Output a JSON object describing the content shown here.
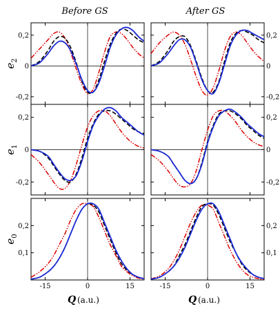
{
  "column_titles": [
    "Before GS",
    "After GS"
  ],
  "x_axis": {
    "symbol": "Q",
    "unit": "(a.u.)"
  },
  "chart_data": {
    "type": "line",
    "xlim": [
      -20,
      20
    ],
    "x_ticks": [
      -15,
      0,
      15
    ],
    "x_tick_labels": [
      "-15",
      "0",
      "15"
    ],
    "rows": [
      {
        "ylabel": "e",
        "ylabel_sub": "2",
        "ylim": [
          -0.25,
          0.28
        ],
        "y_ticks": [
          -0.2,
          0,
          0.2
        ],
        "y_tick_labels": [
          "-0,2",
          "0",
          "0,2"
        ]
      },
      {
        "ylabel": "e",
        "ylabel_sub": "1",
        "ylim": [
          -0.28,
          0.28
        ],
        "y_ticks": [
          -0.2,
          0,
          0.2
        ],
        "y_tick_labels": [
          "-0,2",
          "0",
          "0,2"
        ]
      },
      {
        "ylabel": "e",
        "ylabel_sub": "0",
        "ylim": [
          0,
          0.3
        ],
        "y_ticks": [
          0.1,
          0.2
        ],
        "y_tick_labels": [
          "0,1",
          "0,2"
        ]
      }
    ],
    "panels": [
      {
        "row": 0,
        "col": 0,
        "series": [
          {
            "style": "dashdotdot",
            "color": "#e00000",
            "x": [
              -20,
              -17,
              -14,
              -12,
              -10,
              -8,
              -6,
              -4,
              -2,
              0,
              2,
              4,
              6,
              8,
              10,
              12,
              14,
              16,
              18,
              20
            ],
            "y": [
              0.05,
              0.11,
              0.17,
              0.21,
              0.22,
              0.18,
              0.09,
              -0.02,
              -0.12,
              -0.18,
              -0.15,
              -0.04,
              0.09,
              0.19,
              0.22,
              0.21,
              0.17,
              0.12,
              0.08,
              0.05
            ]
          },
          {
            "style": "dashed",
            "color": "#000000",
            "x": [
              -20,
              -17,
              -14,
              -12,
              -10,
              -8,
              -6,
              -4,
              -2,
              0,
              2,
              4,
              6,
              8,
              10,
              12,
              14,
              16,
              18,
              20
            ],
            "y": [
              0.0,
              0.03,
              0.1,
              0.16,
              0.19,
              0.18,
              0.12,
              0.02,
              -0.1,
              -0.17,
              -0.17,
              -0.09,
              0.03,
              0.14,
              0.21,
              0.24,
              0.23,
              0.2,
              0.17,
              0.15
            ]
          },
          {
            "style": "solid",
            "color": "#1c2bd6",
            "x": [
              -20,
              -17,
              -14,
              -12,
              -10,
              -8,
              -6,
              -4,
              -2,
              0,
              2,
              4,
              6,
              8,
              10,
              12,
              14,
              16,
              18,
              20
            ],
            "y": [
              0.0,
              0.02,
              0.08,
              0.13,
              0.16,
              0.15,
              0.1,
              0.01,
              -0.09,
              -0.16,
              -0.17,
              -0.11,
              0.0,
              0.12,
              0.2,
              0.24,
              0.25,
              0.23,
              0.19,
              0.16
            ]
          }
        ]
      },
      {
        "row": 0,
        "col": 1,
        "series": [
          {
            "style": "dashdotdot",
            "color": "#e00000",
            "x": [
              -20,
              -17,
              -14,
              -12,
              -10,
              -8,
              -6,
              -4,
              -2,
              0,
              2,
              4,
              6,
              8,
              10,
              12,
              14,
              16,
              18,
              20
            ],
            "y": [
              0.08,
              0.15,
              0.2,
              0.22,
              0.2,
              0.14,
              0.04,
              -0.07,
              -0.16,
              -0.19,
              -0.14,
              -0.03,
              0.1,
              0.19,
              0.22,
              0.2,
              0.15,
              0.1,
              0.06,
              0.03
            ]
          },
          {
            "style": "dashed",
            "color": "#000000",
            "x": [
              -20,
              -17,
              -14,
              -12,
              -10,
              -8,
              -6,
              -4,
              -2,
              0,
              2,
              4,
              6,
              8,
              10,
              12,
              14,
              16,
              18,
              20
            ],
            "y": [
              0.0,
              0.03,
              0.1,
              0.16,
              0.19,
              0.19,
              0.13,
              0.03,
              -0.08,
              -0.16,
              -0.17,
              -0.1,
              0.03,
              0.15,
              0.21,
              0.23,
              0.22,
              0.2,
              0.17,
              0.15
            ]
          },
          {
            "style": "solid",
            "color": "#1c2bd6",
            "x": [
              -20,
              -17,
              -14,
              -12,
              -10,
              -8,
              -6,
              -4,
              -2,
              0,
              2,
              4,
              6,
              8,
              10,
              12,
              14,
              16,
              18,
              20
            ],
            "y": [
              0.0,
              0.02,
              0.08,
              0.13,
              0.17,
              0.17,
              0.12,
              0.02,
              -0.09,
              -0.16,
              -0.18,
              -0.11,
              0.01,
              0.13,
              0.2,
              0.23,
              0.23,
              0.21,
              0.19,
              0.17
            ]
          }
        ]
      },
      {
        "row": 1,
        "col": 0,
        "series": [
          {
            "style": "dashdotdot",
            "color": "#e00000",
            "x": [
              -20,
              -17,
              -14,
              -12,
              -10,
              -8,
              -6,
              -4,
              -2,
              0,
              2,
              4,
              6,
              8,
              10,
              12,
              14,
              16,
              18,
              20
            ],
            "y": [
              -0.03,
              -0.08,
              -0.15,
              -0.2,
              -0.24,
              -0.24,
              -0.19,
              -0.09,
              0.03,
              0.14,
              0.21,
              0.24,
              0.24,
              0.21,
              0.16,
              0.11,
              0.07,
              0.04,
              0.02,
              0.01
            ]
          },
          {
            "style": "dashed",
            "color": "#000000",
            "x": [
              -20,
              -17,
              -14,
              -12,
              -10,
              -8,
              -6,
              -4,
              -2,
              0,
              2,
              4,
              6,
              8,
              10,
              12,
              14,
              16,
              18,
              20
            ],
            "y": [
              0.0,
              -0.01,
              -0.05,
              -0.1,
              -0.15,
              -0.19,
              -0.2,
              -0.15,
              -0.05,
              0.07,
              0.16,
              0.22,
              0.24,
              0.24,
              0.22,
              0.19,
              0.16,
              0.13,
              0.11,
              0.1
            ]
          },
          {
            "style": "solid",
            "color": "#1c2bd6",
            "x": [
              -20,
              -17,
              -14,
              -12,
              -10,
              -8,
              -6,
              -4,
              -2,
              0,
              2,
              4,
              6,
              8,
              10,
              12,
              14,
              16,
              18,
              20
            ],
            "y": [
              0.0,
              -0.01,
              -0.04,
              -0.09,
              -0.14,
              -0.18,
              -0.19,
              -0.16,
              -0.07,
              0.05,
              0.15,
              0.21,
              0.25,
              0.26,
              0.24,
              0.2,
              0.17,
              0.14,
              0.11,
              0.09
            ]
          }
        ]
      },
      {
        "row": 1,
        "col": 1,
        "series": [
          {
            "style": "dashdotdot",
            "color": "#e00000",
            "x": [
              -20,
              -17,
              -14,
              -12,
              -10,
              -8,
              -6,
              -4,
              -2,
              0,
              2,
              4,
              6,
              8,
              10,
              12,
              14,
              16,
              18,
              20
            ],
            "y": [
              -0.03,
              -0.07,
              -0.13,
              -0.18,
              -0.22,
              -0.23,
              -0.21,
              -0.13,
              0.0,
              0.12,
              0.21,
              0.24,
              0.24,
              0.21,
              0.17,
              0.12,
              0.08,
              0.05,
              0.03,
              0.02
            ]
          },
          {
            "style": "dashed",
            "color": "#000000",
            "x": [
              -20,
              -17,
              -14,
              -12,
              -10,
              -8,
              -6,
              -4,
              -2,
              0,
              2,
              4,
              6,
              8,
              10,
              12,
              14,
              16,
              18,
              20
            ],
            "y": [
              0.0,
              -0.01,
              -0.04,
              -0.09,
              -0.14,
              -0.19,
              -0.21,
              -0.18,
              -0.08,
              0.05,
              0.15,
              0.22,
              0.24,
              0.24,
              0.22,
              0.19,
              0.15,
              0.12,
              0.09,
              0.07
            ]
          },
          {
            "style": "solid",
            "color": "#1c2bd6",
            "x": [
              -20,
              -17,
              -14,
              -12,
              -10,
              -8,
              -6,
              -4,
              -2,
              0,
              2,
              4,
              6,
              8,
              10,
              12,
              14,
              16,
              18,
              20
            ],
            "y": [
              0.0,
              -0.01,
              -0.04,
              -0.09,
              -0.14,
              -0.19,
              -0.21,
              -0.18,
              -0.09,
              0.04,
              0.14,
              0.21,
              0.24,
              0.25,
              0.23,
              0.2,
              0.16,
              0.13,
              0.1,
              0.08
            ]
          }
        ]
      },
      {
        "row": 2,
        "col": 0,
        "series": [
          {
            "style": "dashdotdot",
            "color": "#e00000",
            "x": [
              -20,
              -17,
              -14,
              -12,
              -10,
              -8,
              -6,
              -4,
              -2,
              0,
              2,
              4,
              6,
              8,
              10,
              12,
              14,
              16,
              18,
              20
            ],
            "y": [
              0.01,
              0.03,
              0.06,
              0.09,
              0.13,
              0.17,
              0.22,
              0.26,
              0.28,
              0.28,
              0.27,
              0.23,
              0.18,
              0.13,
              0.09,
              0.05,
              0.03,
              0.015,
              0.007,
              0.003
            ]
          },
          {
            "style": "dashed",
            "color": "#000000",
            "x": [
              -20,
              -17,
              -14,
              -12,
              -10,
              -8,
              -6,
              -4,
              -2,
              0,
              2,
              4,
              6,
              8,
              10,
              12,
              14,
              16,
              18,
              20
            ],
            "y": [
              0.003,
              0.01,
              0.03,
              0.05,
              0.08,
              0.12,
              0.17,
              0.22,
              0.26,
              0.28,
              0.275,
              0.25,
              0.2,
              0.15,
              0.1,
              0.06,
              0.035,
              0.02,
              0.01,
              0.005
            ]
          },
          {
            "style": "solid",
            "color": "#1c2bd6",
            "x": [
              -20,
              -17,
              -14,
              -12,
              -10,
              -8,
              -6,
              -4,
              -2,
              0,
              2,
              4,
              6,
              8,
              10,
              12,
              14,
              16,
              18,
              20
            ],
            "y": [
              0.003,
              0.01,
              0.03,
              0.05,
              0.08,
              0.12,
              0.17,
              0.22,
              0.26,
              0.28,
              0.28,
              0.26,
              0.21,
              0.16,
              0.11,
              0.07,
              0.04,
              0.02,
              0.01,
              0.005
            ]
          }
        ]
      },
      {
        "row": 2,
        "col": 1,
        "series": [
          {
            "style": "dashdotdot",
            "color": "#e00000",
            "x": [
              -20,
              -17,
              -14,
              -12,
              -10,
              -8,
              -6,
              -4,
              -2,
              0,
              2,
              4,
              6,
              8,
              10,
              12,
              14,
              16,
              18,
              20
            ],
            "y": [
              0.004,
              0.015,
              0.04,
              0.07,
              0.11,
              0.16,
              0.21,
              0.25,
              0.275,
              0.275,
              0.26,
              0.21,
              0.16,
              0.11,
              0.07,
              0.04,
              0.02,
              0.01,
              0.005,
              0.002
            ]
          },
          {
            "style": "dashed",
            "color": "#000000",
            "x": [
              -20,
              -17,
              -14,
              -12,
              -10,
              -8,
              -6,
              -4,
              -2,
              0,
              2,
              4,
              6,
              8,
              10,
              12,
              14,
              16,
              18,
              20
            ],
            "y": [
              0.003,
              0.01,
              0.03,
              0.05,
              0.09,
              0.13,
              0.18,
              0.23,
              0.27,
              0.28,
              0.275,
              0.24,
              0.19,
              0.14,
              0.1,
              0.06,
              0.035,
              0.02,
              0.01,
              0.005
            ]
          },
          {
            "style": "solid",
            "color": "#1c2bd6",
            "x": [
              -20,
              -17,
              -14,
              -12,
              -10,
              -8,
              -6,
              -4,
              -2,
              0,
              2,
              4,
              6,
              8,
              10,
              12,
              14,
              16,
              18,
              20
            ],
            "y": [
              0.003,
              0.01,
              0.03,
              0.05,
              0.08,
              0.12,
              0.17,
              0.22,
              0.26,
              0.28,
              0.28,
              0.25,
              0.2,
              0.15,
              0.1,
              0.065,
              0.04,
              0.02,
              0.01,
              0.005
            ]
          }
        ]
      }
    ]
  }
}
